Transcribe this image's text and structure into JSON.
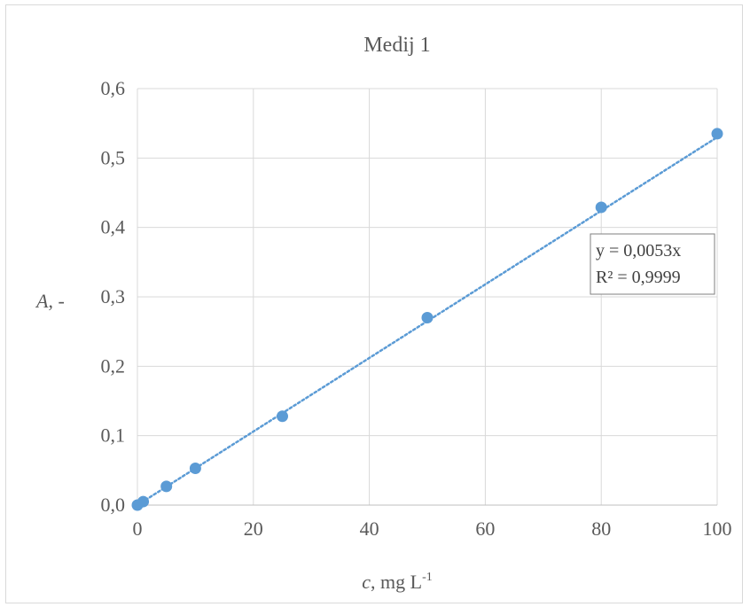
{
  "chart_data": {
    "type": "scatter",
    "title": "Medij 1",
    "xlabel": {
      "italic": "c",
      "text": ", mg L",
      "sup": "-1"
    },
    "ylabel": {
      "italic": "A",
      "text": ", -"
    },
    "xlim": [
      0,
      100
    ],
    "ylim": [
      0,
      0.6
    ],
    "xticks": [
      0,
      20,
      40,
      60,
      80,
      100
    ],
    "xtick_labels": [
      "0",
      "20",
      "40",
      "60",
      "80",
      "100"
    ],
    "yticks": [
      0,
      0.1,
      0.2,
      0.3,
      0.4,
      0.5,
      0.6
    ],
    "ytick_labels": [
      "0,0",
      "0,1",
      "0,2",
      "0,3",
      "0,4",
      "0,5",
      "0,6"
    ],
    "grid": true,
    "series": [
      {
        "x": [
          0,
          1,
          5,
          10,
          25,
          50,
          80,
          100
        ],
        "y": [
          0.0,
          0.005,
          0.027,
          0.053,
          0.128,
          0.27,
          0.429,
          0.535
        ],
        "color": "#5b9bd5"
      }
    ],
    "trendline": {
      "slope": 0.0053,
      "style": "dotted",
      "color": "#5b9bd5",
      "equation": "y = 0,0053x",
      "r_squared": "R² = 0,9999"
    },
    "colors": {
      "grid": "#d9d9d9",
      "text": "#595959",
      "marker": "#5b9bd5"
    }
  }
}
